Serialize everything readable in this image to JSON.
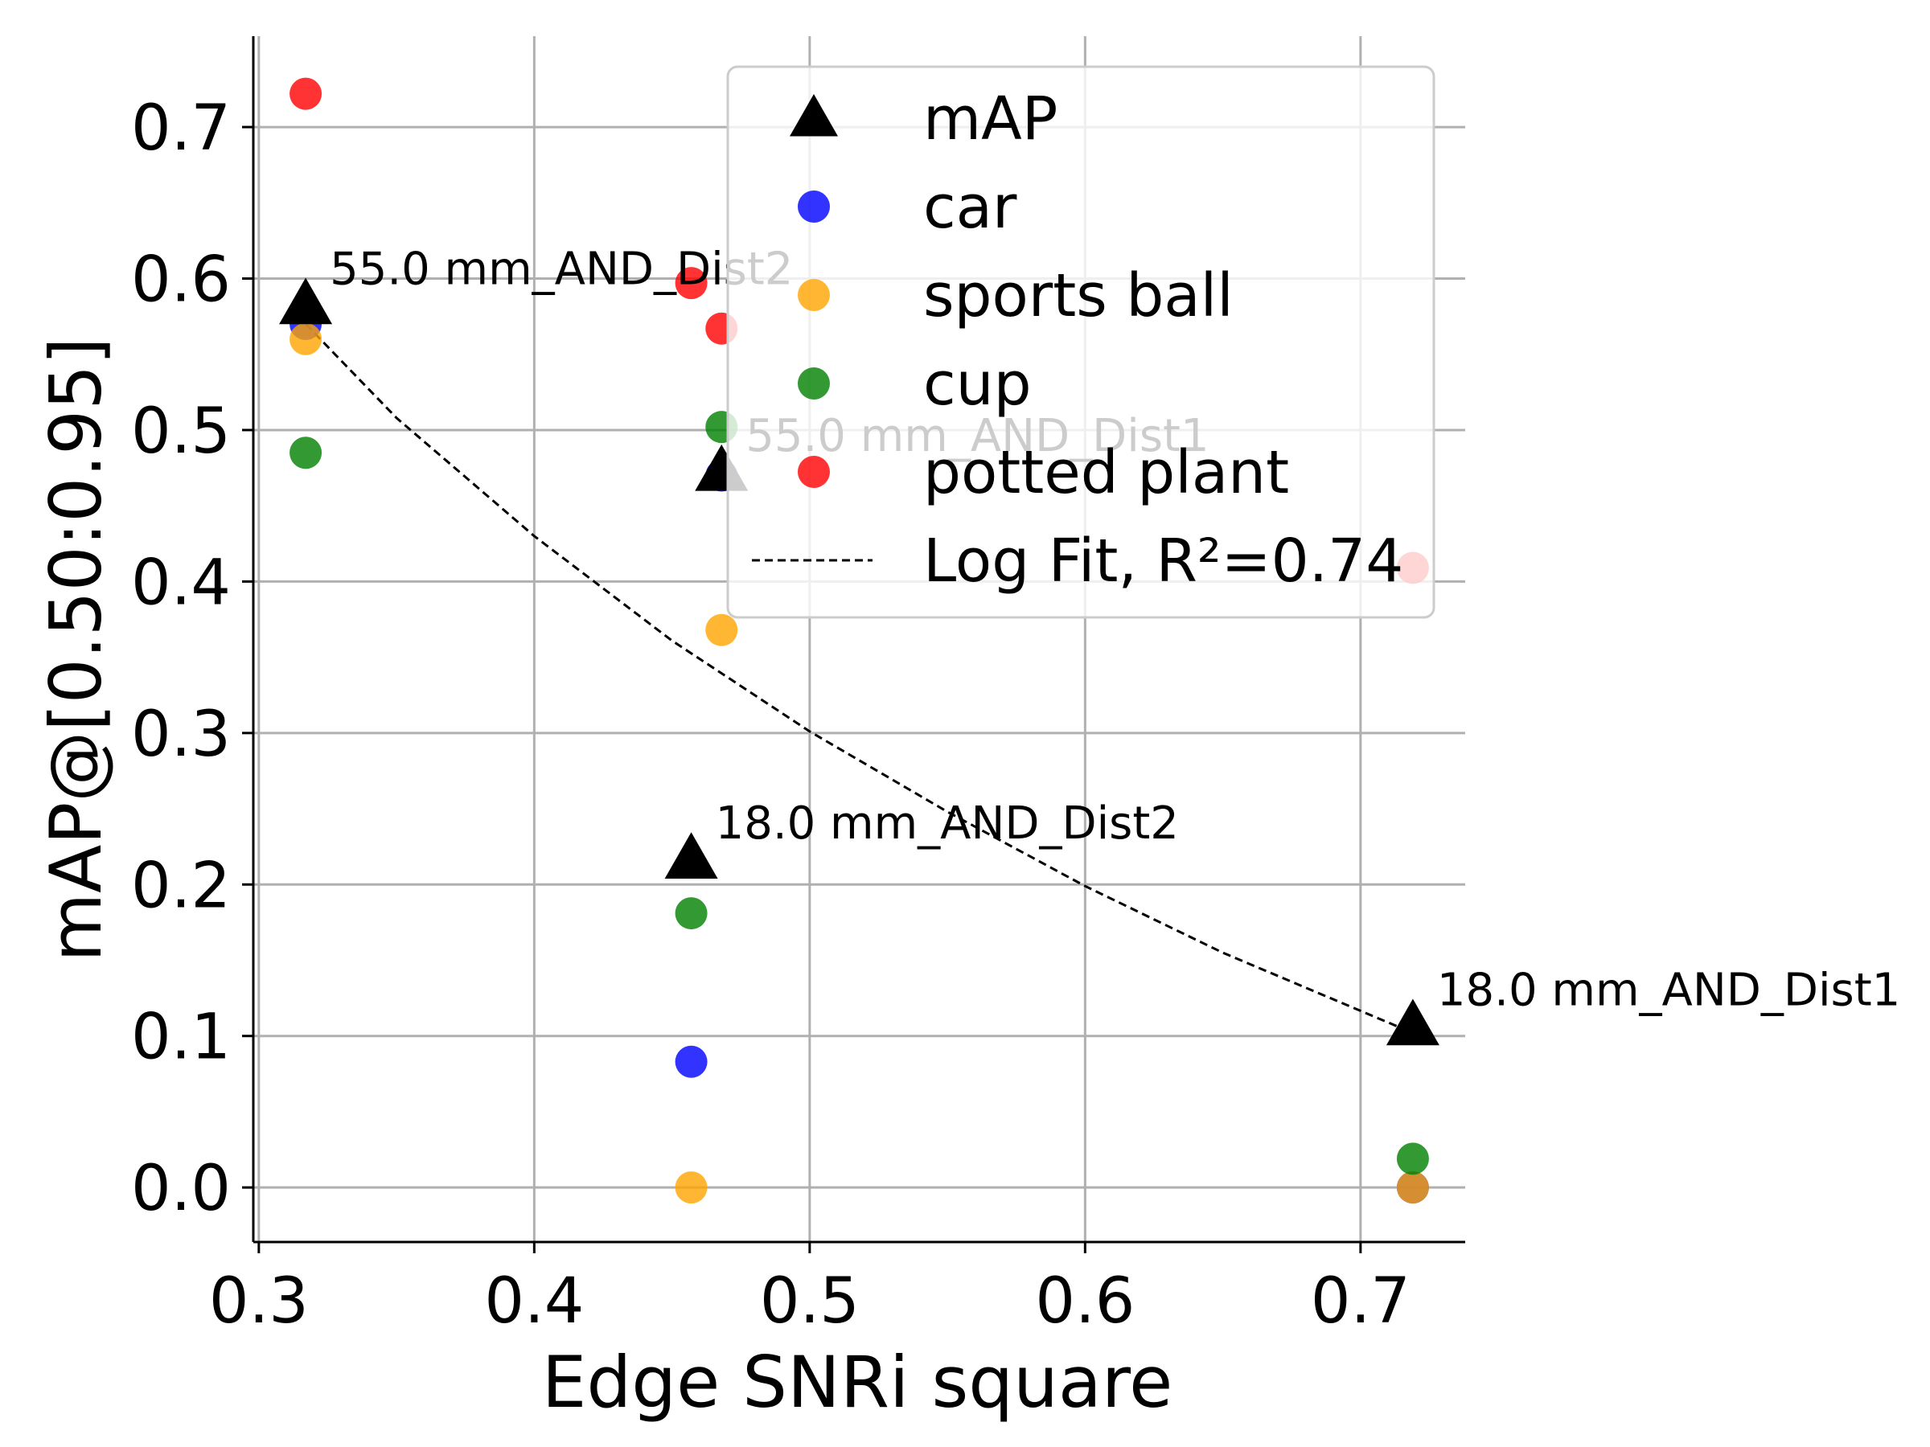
{
  "chart_data": {
    "type": "scatter",
    "xlabel": "Edge SNRi square",
    "ylabel": "mAP@[0.50:0.95]",
    "xlim": [
      0.298,
      0.738
    ],
    "ylim": [
      -0.036,
      0.76
    ],
    "xticks": [
      "0.3",
      "0.4",
      "0.5",
      "0.6",
      "0.7"
    ],
    "yticks": [
      "0.0",
      "0.1",
      "0.2",
      "0.3",
      "0.4",
      "0.5",
      "0.6",
      "0.7"
    ],
    "grid": true,
    "legend_position": "top-right",
    "series": [
      {
        "name": "mAP",
        "marker": "triangle",
        "color": "#000000",
        "points": [
          {
            "x": 0.317,
            "y": 0.583
          },
          {
            "x": 0.468,
            "y": 0.473
          },
          {
            "x": 0.457,
            "y": 0.217
          },
          {
            "x": 0.719,
            "y": 0.107
          }
        ]
      },
      {
        "name": "car",
        "marker": "circle",
        "color": "#0000ff",
        "points": [
          {
            "x": 0.317,
            "y": 0.57
          },
          {
            "x": 0.468,
            "y": 0.47
          },
          {
            "x": 0.457,
            "y": 0.083
          },
          {
            "x": 0.719,
            "y": 0.0
          }
        ]
      },
      {
        "name": "sports ball",
        "marker": "circle",
        "color": "#ffa500",
        "points": [
          {
            "x": 0.317,
            "y": 0.56
          },
          {
            "x": 0.468,
            "y": 0.368
          },
          {
            "x": 0.457,
            "y": 0.0
          },
          {
            "x": 0.719,
            "y": 0.0
          }
        ]
      },
      {
        "name": "cup",
        "marker": "circle",
        "color": "#008000",
        "points": [
          {
            "x": 0.317,
            "y": 0.485
          },
          {
            "x": 0.468,
            "y": 0.502
          },
          {
            "x": 0.457,
            "y": 0.181
          },
          {
            "x": 0.719,
            "y": 0.019
          }
        ]
      },
      {
        "name": "potted plant",
        "marker": "circle",
        "color": "#ff0000",
        "points": [
          {
            "x": 0.317,
            "y": 0.722
          },
          {
            "x": 0.457,
            "y": 0.597
          },
          {
            "x": 0.468,
            "y": 0.567
          },
          {
            "x": 0.719,
            "y": 0.409
          }
        ]
      }
    ],
    "fit": {
      "name": "Log Fit, R²=0.74",
      "style": "dashed",
      "color": "#000000",
      "points": [
        {
          "x": 0.317,
          "y": 0.57
        },
        {
          "x": 0.35,
          "y": 0.508
        },
        {
          "x": 0.4,
          "y": 0.43
        },
        {
          "x": 0.45,
          "y": 0.361
        },
        {
          "x": 0.5,
          "y": 0.301
        },
        {
          "x": 0.55,
          "y": 0.248
        },
        {
          "x": 0.6,
          "y": 0.199
        },
        {
          "x": 0.65,
          "y": 0.155
        },
        {
          "x": 0.719,
          "y": 0.102
        }
      ]
    },
    "annotations": [
      {
        "text": "55.0 mm_AND_Dist2",
        "x": 0.317,
        "y": 0.583
      },
      {
        "text": "55.0 mm_AND_Dist1",
        "x": 0.468,
        "y": 0.473
      },
      {
        "text": "18.0 mm_AND_Dist2",
        "x": 0.457,
        "y": 0.217
      },
      {
        "text": "18.0 mm_AND_Dist1",
        "x": 0.719,
        "y": 0.107
      }
    ]
  }
}
